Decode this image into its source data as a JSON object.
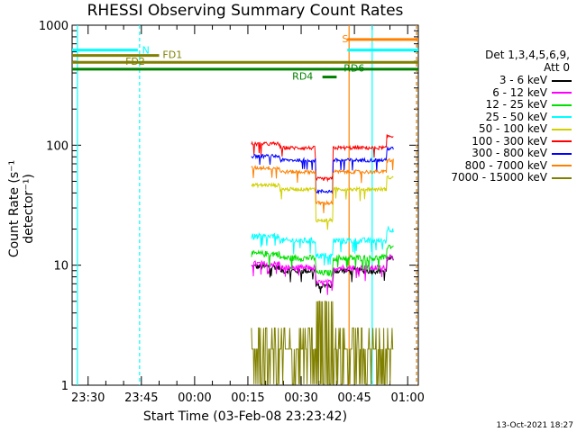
{
  "chart_data": {
    "type": "line",
    "title": "RHESSI Observing Summary Count Rates",
    "xlabel": "Start Time (03-Feb-08 23:23:42)",
    "ylabel": "Count Rate (s⁻¹ detector⁻¹)",
    "yscale": "log",
    "ylim": [
      1,
      1000
    ],
    "xlim_minutes_after_2330": [
      -4.5,
      93
    ],
    "x_ticks": [
      "23:30",
      "23:45",
      "00:00",
      "00:15",
      "00:30",
      "00:45",
      "01:00"
    ],
    "y_ticks": [
      "1",
      "10",
      "100",
      "1000"
    ],
    "legend_header": [
      "Det 1,3,4,5,6,9,",
      "Att 0"
    ],
    "series": [
      {
        "name": "3 - 6 keV",
        "color": "#000000",
        "level": 9.0
      },
      {
        "name": "6 - 12 keV",
        "color": "#ff00ff",
        "level": 9.5
      },
      {
        "name": "12 - 25 keV",
        "color": "#00e000",
        "level": 11.5
      },
      {
        "name": "25 - 50 keV",
        "color": "#00ffff",
        "level": 16.0
      },
      {
        "name": "50 - 100 keV",
        "color": "#d0d000",
        "level": 43.0
      },
      {
        "name": "100 - 300 keV",
        "color": "#ff0000",
        "level": 95.0
      },
      {
        "name": "300 - 800 keV",
        "color": "#0000ff",
        "level": 75.0
      },
      {
        "name": "800 - 7000 keV",
        "color": "#ff8000",
        "level": 60.0
      },
      {
        "name": "7000 - 15000 keV",
        "color": "#808000",
        "level": 2.0
      }
    ],
    "observation_interval_minutes": [
      46,
      86
    ],
    "dip_interval_minutes": [
      64,
      69
    ],
    "flag_bars": [
      {
        "label": "N",
        "color": "#00ffff",
        "segments": [
          [
            -4.5,
            14
          ],
          [
            73,
            93
          ]
        ],
        "level": 620
      },
      {
        "label": "FD1",
        "color": "#808000",
        "segments": [
          [
            -4.5,
            20
          ]
        ],
        "level": 560
      },
      {
        "label": "FD2",
        "color": "#808000",
        "segments": [
          [
            -4.5,
            93
          ]
        ],
        "level": 490
      },
      {
        "label": "RD6",
        "color": "#008000",
        "segments": [
          [
            -4.5,
            93
          ]
        ],
        "level": 430
      },
      {
        "label": "RD4",
        "color": "#008000",
        "segments": [
          [
            66,
            70
          ]
        ],
        "level": 370
      },
      {
        "label": "S",
        "color": "#ff8000",
        "segments": [
          [
            73,
            93
          ]
        ],
        "level": 760
      }
    ],
    "vertical_markers": [
      {
        "color": "#00ffff",
        "x": -3,
        "style": "solid"
      },
      {
        "color": "#00ffff",
        "x": 14.5,
        "style": "dashed"
      },
      {
        "color": "#00ffff",
        "x": 80,
        "style": "solid"
      },
      {
        "color": "#00ffff",
        "x": 92.5,
        "style": "dashed"
      },
      {
        "color": "#ff8000",
        "x": 73.5,
        "style": "solid"
      },
      {
        "color": "#ff8000",
        "x": 92.5,
        "style": "dashed"
      }
    ]
  },
  "footer": "13-Oct-2021 18:27"
}
